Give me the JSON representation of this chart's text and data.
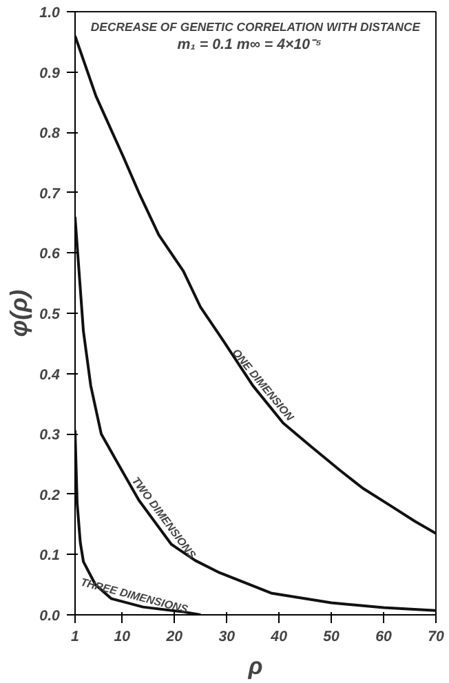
{
  "chart_data": {
    "type": "line",
    "title": "DECREASE OF GENETIC CORRELATION WITH DISTANCE",
    "subtitle": "m₁ = 0.1    m∞ = 4×10⁻⁵",
    "xlabel": "ρ",
    "ylabel": "φ(ρ)",
    "xlim": [
      1,
      70
    ],
    "xticks": [
      1,
      10,
      20,
      30,
      40,
      50,
      60,
      70
    ],
    "ylim": [
      0,
      1
    ],
    "yticks": [
      {
        "value": 0,
        "label": "0.0"
      },
      0.1,
      0.2,
      0.3,
      0.4,
      0.5,
      0.6,
      0.7,
      0.8,
      0.9,
      {
        "value": 1,
        "label": "1.0"
      }
    ],
    "grid": false,
    "marker": "none",
    "line_style": "solid",
    "series": [
      {
        "color": "#111111",
        "x": [
          1,
          5,
          10.2,
          13.2,
          17,
          21.7,
          25,
          29.3,
          35,
          40.8,
          46,
          51.6,
          56,
          61.5,
          66,
          70
        ],
        "values": [
          0.96,
          0.86,
          0.76,
          0.7,
          0.63,
          0.57,
          0.51,
          0.455,
          0.38,
          0.318,
          0.28,
          0.24,
          0.21,
          0.18,
          0.155,
          0.135
        ]
      },
      {
        "color": "#111111",
        "x": [
          1,
          1.5,
          2.6,
          4,
          5.1,
          6,
          8.6,
          13.2,
          19.4,
          24,
          28.6,
          38.5,
          50,
          60,
          70
        ],
        "values": [
          0.66,
          0.6,
          0.47,
          0.38,
          0.336,
          0.3,
          0.26,
          0.19,
          0.117,
          0.09,
          0.07,
          0.036,
          0.02,
          0.012,
          0.007
        ]
      },
      {
        "color": "#111111",
        "x": [
          1,
          1.4,
          2,
          2.6,
          4.9,
          7.9,
          14,
          21.7,
          25
        ],
        "values": [
          0.306,
          0.185,
          0.12,
          0.088,
          0.05,
          0.027,
          0.013,
          0.005,
          0.0
        ]
      }
    ],
    "annotations": [
      {
        "text": "ONE DIMENSION",
        "x": 36,
        "y": 0.37
      },
      {
        "text": "TWO DIMENSIONS",
        "x": 17,
        "y": 0.15
      },
      {
        "text": "THREE DIMENSIONS",
        "x": 12,
        "y": 0.017
      }
    ]
  }
}
